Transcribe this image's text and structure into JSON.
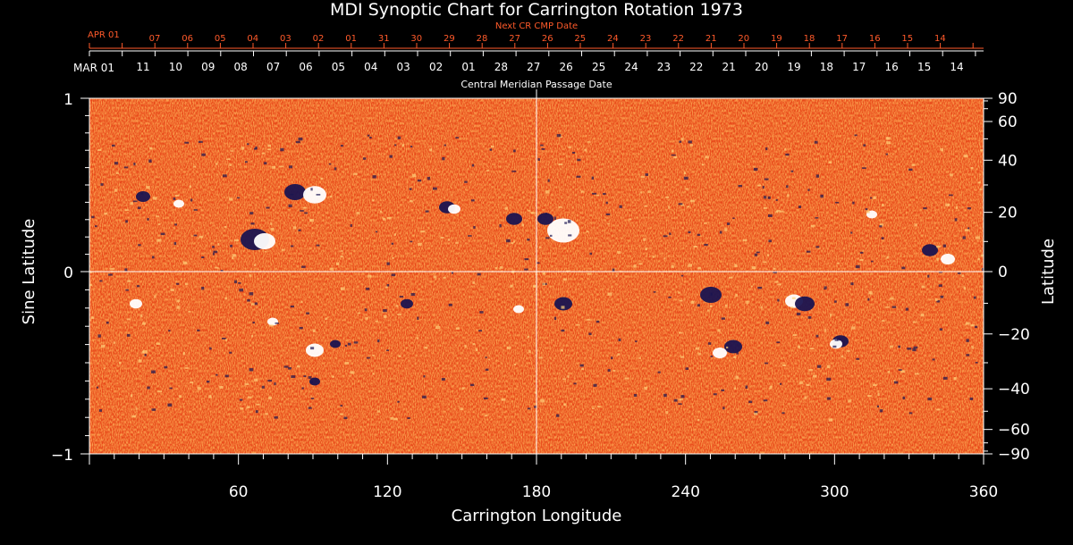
{
  "colors": {
    "background": "#000000",
    "field_base": "#e8491a",
    "positive_polarity": "#ffffff",
    "negative_polarity": "#1a1450",
    "top_red_scale": "#ff5a2a",
    "axis": "#ffffff"
  },
  "chart_data": {
    "type": "heatmap",
    "title": "MDI Synoptic Chart for Carrington Rotation 1973",
    "xlabel": "Carrington Longitude",
    "ylabel_left": "Sine Latitude",
    "ylabel_right": "Latitude",
    "xlim": [
      0,
      360
    ],
    "ylim": [
      -1,
      1
    ],
    "x_ticks": [
      60,
      120,
      180,
      240,
      300,
      360
    ],
    "y_ticks_left": [
      "1",
      "0",
      "−1"
    ],
    "y_ticks_left_values": [
      1,
      0,
      -1
    ],
    "y_ticks_right": [
      "90",
      "60",
      "40",
      "20",
      "0",
      "−20",
      "−40",
      "−60",
      "−90"
    ],
    "y_ticks_right_values": [
      90,
      60,
      40,
      20,
      0,
      -20,
      -40,
      -60,
      -90
    ],
    "cmp_axis_label": "Central Meridian Passage Date",
    "cmp_start_label": "MAR 01",
    "cmp_dates": [
      "11",
      "10",
      "09",
      "08",
      "07",
      "06",
      "05",
      "04",
      "03",
      "02",
      "01",
      "28",
      "27",
      "26",
      "25",
      "24",
      "23",
      "22",
      "21",
      "20",
      "19",
      "18",
      "17",
      "16",
      "15",
      "14"
    ],
    "next_cr_label": "Next CR CMP Date",
    "next_cr_start_label": "APR 01",
    "next_cr_dates": [
      "07",
      "06",
      "05",
      "04",
      "03",
      "02",
      "01",
      "31",
      "30",
      "29",
      "28",
      "27",
      "26",
      "25",
      "24",
      "23",
      "22",
      "21",
      "20",
      "19",
      "18",
      "17",
      "16",
      "15",
      "14"
    ],
    "gridlines": "center crosshair at 180° longitude and 0 latitude"
  }
}
